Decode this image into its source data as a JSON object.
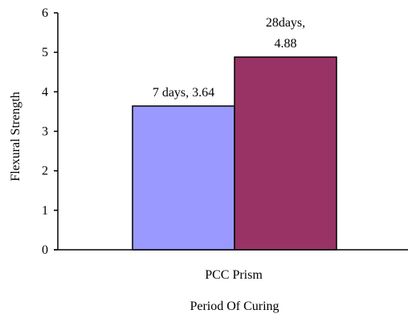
{
  "chart_data": {
    "type": "bar",
    "categories": [
      "PCC Prism"
    ],
    "series": [
      {
        "values": [
          3.64
        ],
        "color": "#9999ff",
        "data_label_lines": [
          "7 days, 3.64"
        ]
      },
      {
        "values": [
          4.88
        ],
        "color": "#993366",
        "data_label_lines": [
          "28days,",
          "4.88"
        ]
      }
    ],
    "xlabel": "Period Of Curing",
    "ylabel": "Flexural Strength",
    "ylim": [
      0,
      6
    ],
    "yticks": [
      0,
      1,
      2,
      3,
      4,
      5,
      6
    ],
    "grid": false,
    "legend": "none"
  }
}
